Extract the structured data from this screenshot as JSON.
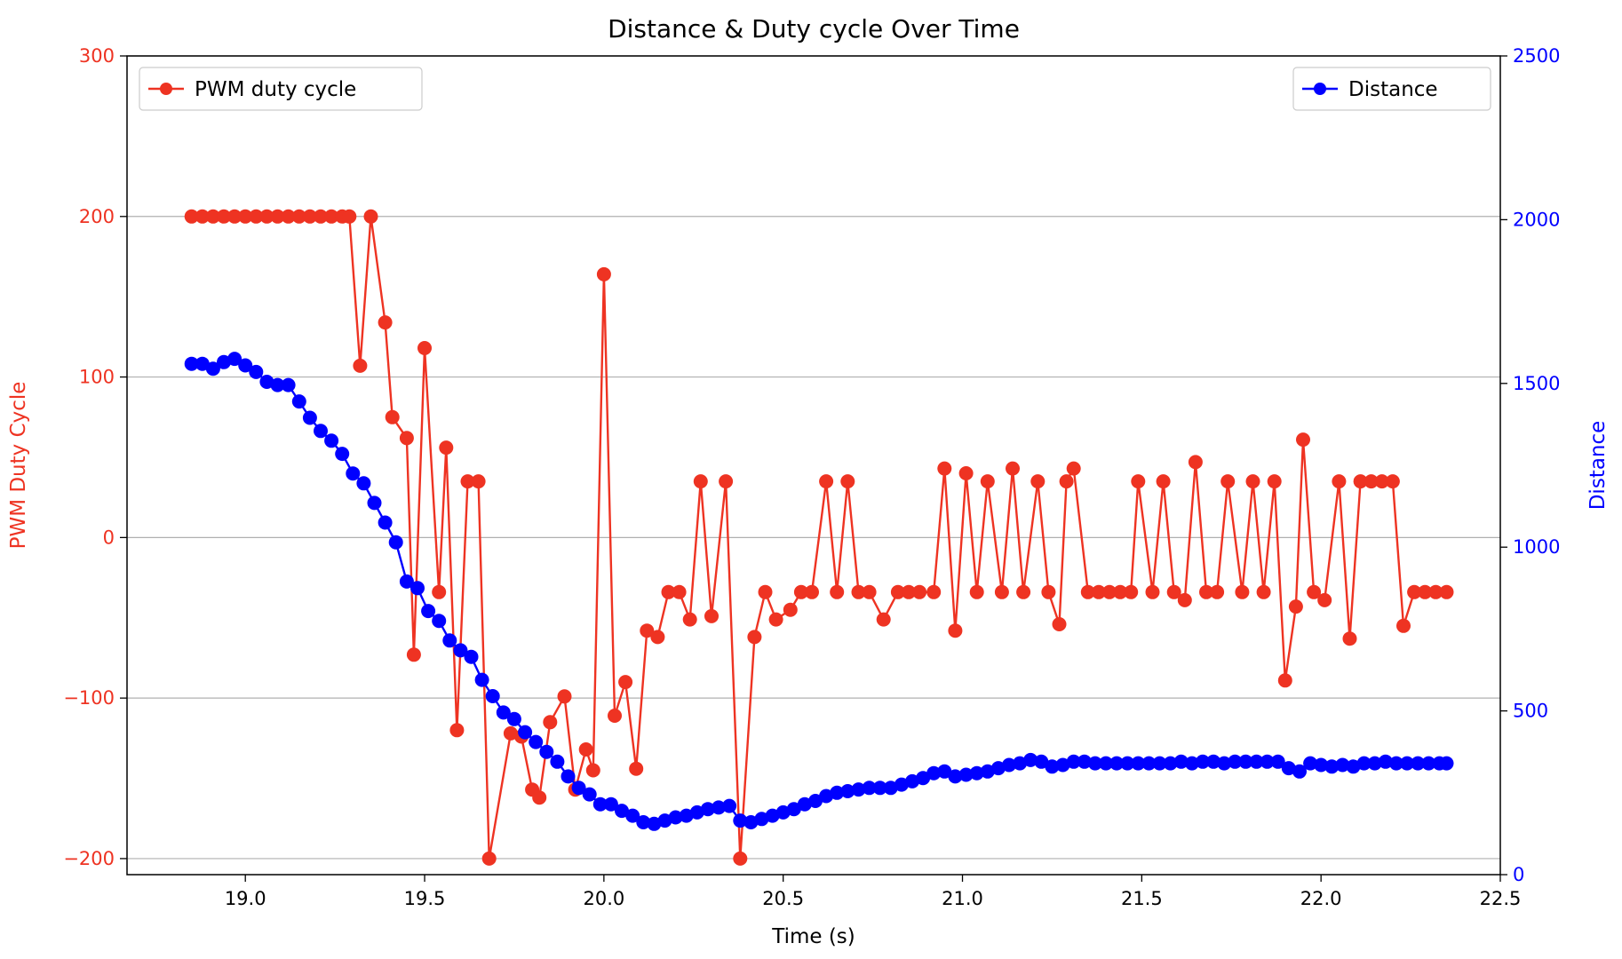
{
  "chart_data": {
    "type": "line",
    "title": "Distance & Duty cycle Over Time",
    "xlabel": "Time (s)",
    "xlim": [
      18.67,
      22.5
    ],
    "xticks": [
      19.0,
      19.5,
      20.0,
      20.5,
      21.0,
      21.5,
      22.0,
      22.5
    ],
    "xtick_labels": [
      "19.0",
      "19.5",
      "20.0",
      "20.5",
      "21.0",
      "21.5",
      "22.0",
      "22.5"
    ],
    "grid": "horizontal",
    "y_left": {
      "label": "PWM Duty Cycle",
      "color": "#ee3322",
      "ylim": [
        -210,
        300
      ],
      "ticks": [
        -200,
        -100,
        0,
        100,
        200,
        300
      ],
      "tick_labels": [
        "−200",
        "−100",
        "0",
        "100",
        "200",
        "300"
      ]
    },
    "y_right": {
      "label": "Distance",
      "color": "#0000ff",
      "ylim": [
        0,
        2500
      ],
      "ticks": [
        0,
        500,
        1000,
        1500,
        2000,
        2500
      ],
      "tick_labels": [
        "0",
        "500",
        "1000",
        "1500",
        "2000",
        "2500"
      ]
    },
    "series": [
      {
        "name": "PWM duty cycle",
        "axis": "left",
        "color": "#ee3322",
        "legend": "upper-left",
        "points": [
          [
            18.85,
            200
          ],
          [
            18.88,
            200
          ],
          [
            18.91,
            200
          ],
          [
            18.94,
            200
          ],
          [
            18.97,
            200
          ],
          [
            19.0,
            200
          ],
          [
            19.03,
            200
          ],
          [
            19.06,
            200
          ],
          [
            19.09,
            200
          ],
          [
            19.12,
            200
          ],
          [
            19.15,
            200
          ],
          [
            19.18,
            200
          ],
          [
            19.21,
            200
          ],
          [
            19.24,
            200
          ],
          [
            19.27,
            200
          ],
          [
            19.29,
            200
          ],
          [
            19.32,
            107
          ],
          [
            19.35,
            200
          ],
          [
            19.39,
            134
          ],
          [
            19.41,
            75
          ],
          [
            19.45,
            62
          ],
          [
            19.47,
            -73
          ],
          [
            19.5,
            118
          ],
          [
            19.54,
            -34
          ],
          [
            19.56,
            56
          ],
          [
            19.59,
            -120
          ],
          [
            19.62,
            35
          ],
          [
            19.65,
            35
          ],
          [
            19.68,
            -200
          ],
          [
            19.74,
            -122
          ],
          [
            19.77,
            -124
          ],
          [
            19.8,
            -157
          ],
          [
            19.82,
            -162
          ],
          [
            19.85,
            -115
          ],
          [
            19.89,
            -99
          ],
          [
            19.92,
            -157
          ],
          [
            19.95,
            -132
          ],
          [
            19.97,
            -145
          ],
          [
            20.0,
            164
          ],
          [
            20.03,
            -111
          ],
          [
            20.06,
            -90
          ],
          [
            20.09,
            -144
          ],
          [
            20.12,
            -58
          ],
          [
            20.15,
            -62
          ],
          [
            20.18,
            -34
          ],
          [
            20.21,
            -34
          ],
          [
            20.24,
            -51
          ],
          [
            20.27,
            35
          ],
          [
            20.3,
            -49
          ],
          [
            20.34,
            35
          ],
          [
            20.38,
            -200
          ],
          [
            20.42,
            -62
          ],
          [
            20.45,
            -34
          ],
          [
            20.48,
            -51
          ],
          [
            20.52,
            -45
          ],
          [
            20.55,
            -34
          ],
          [
            20.58,
            -34
          ],
          [
            20.62,
            35
          ],
          [
            20.65,
            -34
          ],
          [
            20.68,
            35
          ],
          [
            20.71,
            -34
          ],
          [
            20.74,
            -34
          ],
          [
            20.78,
            -51
          ],
          [
            20.82,
            -34
          ],
          [
            20.85,
            -34
          ],
          [
            20.88,
            -34
          ],
          [
            20.92,
            -34
          ],
          [
            20.95,
            43
          ],
          [
            20.98,
            -58
          ],
          [
            21.01,
            40
          ],
          [
            21.04,
            -34
          ],
          [
            21.07,
            35
          ],
          [
            21.11,
            -34
          ],
          [
            21.14,
            43
          ],
          [
            21.17,
            -34
          ],
          [
            21.21,
            35
          ],
          [
            21.24,
            -34
          ],
          [
            21.27,
            -54
          ],
          [
            21.29,
            35
          ],
          [
            21.31,
            43
          ],
          [
            21.35,
            -34
          ],
          [
            21.38,
            -34
          ],
          [
            21.41,
            -34
          ],
          [
            21.44,
            -34
          ],
          [
            21.47,
            -34
          ],
          [
            21.49,
            35
          ],
          [
            21.53,
            -34
          ],
          [
            21.56,
            35
          ],
          [
            21.59,
            -34
          ],
          [
            21.62,
            -39
          ],
          [
            21.65,
            47
          ],
          [
            21.68,
            -34
          ],
          [
            21.71,
            -34
          ],
          [
            21.74,
            35
          ],
          [
            21.78,
            -34
          ],
          [
            21.81,
            35
          ],
          [
            21.84,
            -34
          ],
          [
            21.87,
            35
          ],
          [
            21.9,
            -89
          ],
          [
            21.93,
            -43
          ],
          [
            21.95,
            61
          ],
          [
            21.98,
            -34
          ],
          [
            22.01,
            -39
          ],
          [
            22.05,
            35
          ],
          [
            22.08,
            -63
          ],
          [
            22.11,
            35
          ],
          [
            22.14,
            35
          ],
          [
            22.17,
            35
          ],
          [
            22.2,
            35
          ],
          [
            22.23,
            -55
          ],
          [
            22.26,
            -34
          ],
          [
            22.29,
            -34
          ],
          [
            22.32,
            -34
          ],
          [
            22.35,
            -34
          ]
        ]
      },
      {
        "name": "Distance",
        "axis": "right",
        "color": "#0000ff",
        "legend": "upper-right",
        "points": [
          [
            18.85,
            1560
          ],
          [
            18.88,
            1560
          ],
          [
            18.91,
            1545
          ],
          [
            18.94,
            1565
          ],
          [
            18.97,
            1575
          ],
          [
            19.0,
            1555
          ],
          [
            19.03,
            1535
          ],
          [
            19.06,
            1505
          ],
          [
            19.09,
            1495
          ],
          [
            19.12,
            1495
          ],
          [
            19.15,
            1445
          ],
          [
            19.18,
            1395
          ],
          [
            19.21,
            1355
          ],
          [
            19.24,
            1325
          ],
          [
            19.27,
            1285
          ],
          [
            19.3,
            1225
          ],
          [
            19.33,
            1195
          ],
          [
            19.36,
            1135
          ],
          [
            19.39,
            1075
          ],
          [
            19.42,
            1015
          ],
          [
            19.45,
            895
          ],
          [
            19.48,
            875
          ],
          [
            19.51,
            805
          ],
          [
            19.54,
            775
          ],
          [
            19.57,
            715
          ],
          [
            19.6,
            685
          ],
          [
            19.63,
            665
          ],
          [
            19.66,
            595
          ],
          [
            19.69,
            545
          ],
          [
            19.72,
            495
          ],
          [
            19.75,
            475
          ],
          [
            19.78,
            435
          ],
          [
            19.81,
            405
          ],
          [
            19.84,
            375
          ],
          [
            19.87,
            345
          ],
          [
            19.9,
            300
          ],
          [
            19.93,
            265
          ],
          [
            19.96,
            245
          ],
          [
            19.99,
            215
          ],
          [
            20.02,
            215
          ],
          [
            20.05,
            195
          ],
          [
            20.08,
            180
          ],
          [
            20.11,
            160
          ],
          [
            20.14,
            155
          ],
          [
            20.17,
            165
          ],
          [
            20.2,
            175
          ],
          [
            20.23,
            180
          ],
          [
            20.26,
            190
          ],
          [
            20.29,
            200
          ],
          [
            20.32,
            205
          ],
          [
            20.35,
            210
          ],
          [
            20.38,
            165
          ],
          [
            20.41,
            160
          ],
          [
            20.44,
            170
          ],
          [
            20.47,
            180
          ],
          [
            20.5,
            190
          ],
          [
            20.53,
            200
          ],
          [
            20.56,
            215
          ],
          [
            20.59,
            225
          ],
          [
            20.62,
            240
          ],
          [
            20.65,
            250
          ],
          [
            20.68,
            255
          ],
          [
            20.71,
            260
          ],
          [
            20.74,
            265
          ],
          [
            20.77,
            265
          ],
          [
            20.8,
            265
          ],
          [
            20.83,
            275
          ],
          [
            20.86,
            285
          ],
          [
            20.89,
            295
          ],
          [
            20.92,
            310
          ],
          [
            20.95,
            315
          ],
          [
            20.98,
            300
          ],
          [
            21.01,
            305
          ],
          [
            21.04,
            310
          ],
          [
            21.07,
            315
          ],
          [
            21.1,
            325
          ],
          [
            21.13,
            335
          ],
          [
            21.16,
            340
          ],
          [
            21.19,
            350
          ],
          [
            21.22,
            345
          ],
          [
            21.25,
            330
          ],
          [
            21.28,
            335
          ],
          [
            21.31,
            345
          ],
          [
            21.34,
            345
          ],
          [
            21.37,
            340
          ],
          [
            21.4,
            340
          ],
          [
            21.43,
            340
          ],
          [
            21.46,
            340
          ],
          [
            21.49,
            340
          ],
          [
            21.52,
            340
          ],
          [
            21.55,
            340
          ],
          [
            21.58,
            340
          ],
          [
            21.61,
            345
          ],
          [
            21.64,
            340
          ],
          [
            21.67,
            345
          ],
          [
            21.7,
            345
          ],
          [
            21.73,
            340
          ],
          [
            21.76,
            345
          ],
          [
            21.79,
            345
          ],
          [
            21.82,
            345
          ],
          [
            21.85,
            345
          ],
          [
            21.88,
            345
          ],
          [
            21.91,
            325
          ],
          [
            21.94,
            315
          ],
          [
            21.97,
            340
          ],
          [
            22.0,
            335
          ],
          [
            22.03,
            330
          ],
          [
            22.06,
            335
          ],
          [
            22.09,
            330
          ],
          [
            22.12,
            340
          ],
          [
            22.15,
            340
          ],
          [
            22.18,
            345
          ],
          [
            22.21,
            340
          ],
          [
            22.24,
            340
          ],
          [
            22.27,
            340
          ],
          [
            22.3,
            340
          ],
          [
            22.33,
            340
          ],
          [
            22.35,
            340
          ]
        ]
      }
    ]
  }
}
